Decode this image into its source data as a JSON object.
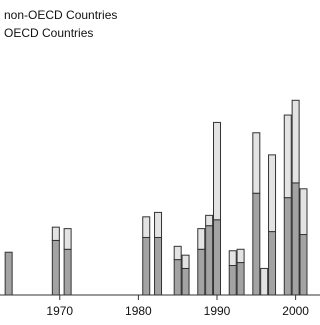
{
  "chart_data": {
    "type": "stacked-bar",
    "x": [
      1963.5,
      1969.5,
      1971,
      1981,
      1982.5,
      1985,
      1986,
      1988,
      1989,
      1990,
      1992,
      1993,
      1995,
      1996,
      1997,
      1999,
      2000,
      2001
    ],
    "series": [
      {
        "name": "OECD Countries",
        "color": "#a3a3a3",
        "values": [
          14.5,
          18.5,
          15.5,
          19.5,
          19.5,
          12,
          9,
          15.5,
          23.5,
          25.5,
          10,
          11,
          34.5,
          0,
          21.5,
          33,
          38,
          20.5
        ]
      },
      {
        "name": "non-OECD Countries",
        "color": "#e3e3e3",
        "values": [
          0,
          4.5,
          7,
          7,
          8.5,
          4.5,
          4.5,
          7,
          3.5,
          33,
          5,
          4.5,
          20.5,
          9,
          26,
          28,
          28,
          15.5
        ]
      }
    ],
    "xlim": [
      1962.4,
      2003.1
    ],
    "xticks": [
      1970,
      1980,
      1990,
      2000
    ],
    "ylim": [
      0,
      100
    ]
  }
}
